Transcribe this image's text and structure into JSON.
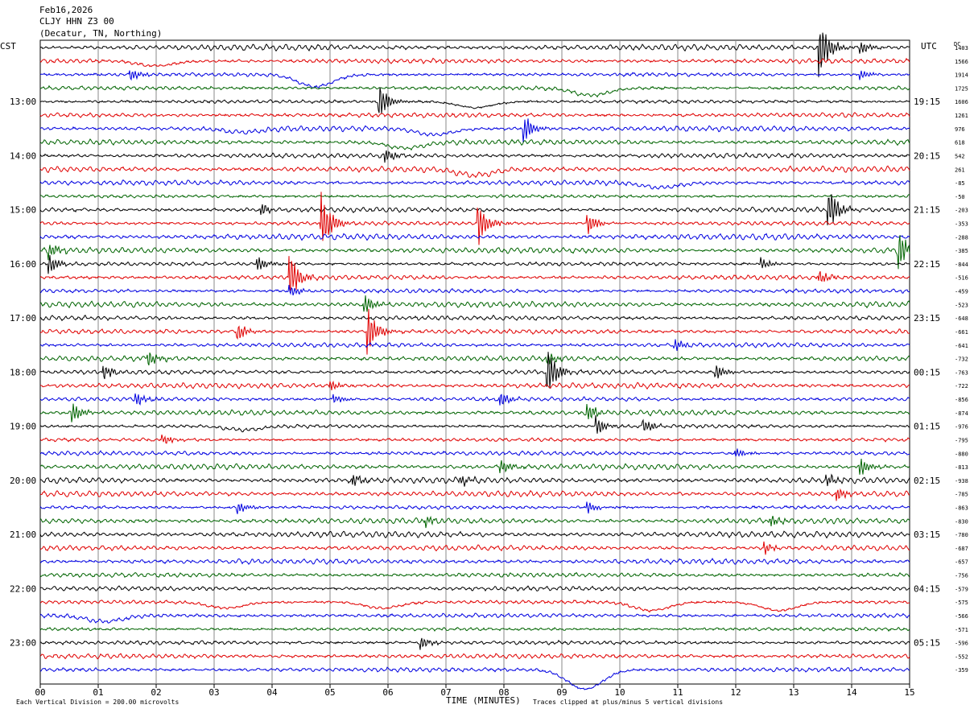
{
  "header": {
    "date": "Feb16,2026",
    "station": "CLJY HHN Z3 00",
    "location": "(Decatur, TN, Northing)"
  },
  "chart_data": {
    "type": "line",
    "title": "CLJY HHN Z3 00",
    "left_axis_label": "CST",
    "right_axis_label": "UTC",
    "dc_label": "DC",
    "xlabel": "TIME (MINUTES)",
    "xlim": [
      0,
      15
    ],
    "x_ticks": [
      "00",
      "01",
      "02",
      "03",
      "04",
      "05",
      "06",
      "07",
      "08",
      "09",
      "10",
      "11",
      "12",
      "13",
      "14",
      "15"
    ],
    "left_hour_labels": [
      {
        "trace": 4,
        "label": "13:00"
      },
      {
        "trace": 8,
        "label": "14:00"
      },
      {
        "trace": 12,
        "label": "15:00"
      },
      {
        "trace": 16,
        "label": "16:00"
      },
      {
        "trace": 20,
        "label": "17:00"
      },
      {
        "trace": 24,
        "label": "18:00"
      },
      {
        "trace": 28,
        "label": "19:00"
      },
      {
        "trace": 32,
        "label": "20:00"
      },
      {
        "trace": 36,
        "label": "21:00"
      },
      {
        "trace": 40,
        "label": "22:00"
      },
      {
        "trace": 44,
        "label": "23:00"
      }
    ],
    "right_hour_labels": [
      {
        "trace": 4,
        "label": "19:15"
      },
      {
        "trace": 8,
        "label": "20:15"
      },
      {
        "trace": 12,
        "label": "21:15"
      },
      {
        "trace": 16,
        "label": "22:15"
      },
      {
        "trace": 20,
        "label": "23:15"
      },
      {
        "trace": 24,
        "label": "00:15"
      },
      {
        "trace": 28,
        "label": "01:15"
      },
      {
        "trace": 32,
        "label": "02:15"
      },
      {
        "trace": 36,
        "label": "03:15"
      },
      {
        "trace": 40,
        "label": "04:15"
      },
      {
        "trace": 44,
        "label": "05:15"
      }
    ],
    "dc_offsets": [
      "1403",
      "1566",
      "1914",
      "1725",
      "1606",
      "1261",
      "976",
      "618",
      "542",
      "261",
      "-85",
      "-50",
      "-203",
      "-353",
      "-288",
      "-385",
      "-844",
      "-516",
      "-459",
      "-523",
      "-648",
      "-661",
      "-641",
      "-732",
      "-763",
      "-722",
      "-856",
      "-874",
      "-976",
      "-795",
      "-880",
      "-813",
      "-938",
      "-785",
      "-863",
      "-830",
      "-780",
      "-687",
      "-657",
      "-756",
      "-579",
      "-575",
      "-566",
      "-571",
      "-596",
      "-552",
      "-359"
    ],
    "trace_colors": [
      "#000000",
      "#e00000",
      "#0000e0",
      "#006400"
    ],
    "events": [
      {
        "trace": 0,
        "minute": 13.45,
        "amplitude": 2.6
      },
      {
        "trace": 0,
        "minute": 14.15,
        "amplitude": 0.6
      },
      {
        "trace": 2,
        "minute": 1.55,
        "amplitude": 0.6
      },
      {
        "trace": 2,
        "minute": 14.15,
        "amplitude": 0.5
      },
      {
        "trace": 4,
        "minute": 5.85,
        "amplitude": 1.6
      },
      {
        "trace": 6,
        "minute": 8.35,
        "amplitude": 1.2
      },
      {
        "trace": 8,
        "minute": 5.95,
        "amplitude": 0.6
      },
      {
        "trace": 12,
        "minute": 3.8,
        "amplitude": 0.6
      },
      {
        "trace": 12,
        "minute": 13.6,
        "amplitude": 2.0
      },
      {
        "trace": 13,
        "minute": 4.85,
        "amplitude": 2.8
      },
      {
        "trace": 13,
        "minute": 7.55,
        "amplitude": 2.2
      },
      {
        "trace": 13,
        "minute": 9.45,
        "amplitude": 0.9
      },
      {
        "trace": 15,
        "minute": 0.15,
        "amplitude": 0.7
      },
      {
        "trace": 15,
        "minute": 14.8,
        "amplitude": 1.8
      },
      {
        "trace": 16,
        "minute": 0.15,
        "amplitude": 0.9
      },
      {
        "trace": 16,
        "minute": 3.75,
        "amplitude": 0.7
      },
      {
        "trace": 16,
        "minute": 12.45,
        "amplitude": 0.6
      },
      {
        "trace": 17,
        "minute": 4.3,
        "amplitude": 2.2
      },
      {
        "trace": 17,
        "minute": 13.45,
        "amplitude": 0.6
      },
      {
        "trace": 18,
        "minute": 4.3,
        "amplitude": 0.6
      },
      {
        "trace": 19,
        "minute": 5.6,
        "amplitude": 0.8
      },
      {
        "trace": 21,
        "minute": 5.65,
        "amplitude": 2.0
      },
      {
        "trace": 21,
        "minute": 3.4,
        "amplitude": 0.8
      },
      {
        "trace": 22,
        "minute": 10.95,
        "amplitude": 0.5
      },
      {
        "trace": 23,
        "minute": 1.85,
        "amplitude": 0.8
      },
      {
        "trace": 23,
        "minute": 8.75,
        "amplitude": 0.6
      },
      {
        "trace": 24,
        "minute": 8.75,
        "amplitude": 2.0
      },
      {
        "trace": 24,
        "minute": 1.1,
        "amplitude": 0.6
      },
      {
        "trace": 24,
        "minute": 11.65,
        "amplitude": 0.7
      },
      {
        "trace": 25,
        "minute": 5.0,
        "amplitude": 0.5
      },
      {
        "trace": 26,
        "minute": 1.65,
        "amplitude": 0.6
      },
      {
        "trace": 26,
        "minute": 5.05,
        "amplitude": 0.5
      },
      {
        "trace": 26,
        "minute": 7.95,
        "amplitude": 0.6
      },
      {
        "trace": 27,
        "minute": 0.55,
        "amplitude": 1.0
      },
      {
        "trace": 27,
        "minute": 9.45,
        "amplitude": 0.7
      },
      {
        "trace": 28,
        "minute": 9.6,
        "amplitude": 0.8
      },
      {
        "trace": 28,
        "minute": 10.4,
        "amplitude": 0.8
      },
      {
        "trace": 29,
        "minute": 2.1,
        "amplitude": 0.5
      },
      {
        "trace": 30,
        "minute": 12.0,
        "amplitude": 0.5
      },
      {
        "trace": 31,
        "minute": 7.95,
        "amplitude": 0.7
      },
      {
        "trace": 31,
        "minute": 14.15,
        "amplitude": 0.8
      },
      {
        "trace": 32,
        "minute": 5.4,
        "amplitude": 0.5
      },
      {
        "trace": 32,
        "minute": 7.25,
        "amplitude": 0.5
      },
      {
        "trace": 32,
        "minute": 13.55,
        "amplitude": 0.6
      },
      {
        "trace": 33,
        "minute": 13.75,
        "amplitude": 0.6
      },
      {
        "trace": 34,
        "minute": 3.4,
        "amplitude": 0.6
      },
      {
        "trace": 34,
        "minute": 9.45,
        "amplitude": 0.5
      },
      {
        "trace": 35,
        "minute": 6.65,
        "amplitude": 0.5
      },
      {
        "trace": 35,
        "minute": 12.6,
        "amplitude": 0.6
      },
      {
        "trace": 37,
        "minute": 12.5,
        "amplitude": 0.5
      },
      {
        "trace": 44,
        "minute": 6.55,
        "amplitude": 0.7
      }
    ],
    "drifts": [
      {
        "trace": 1,
        "minute": 2.0,
        "depth": 0.8
      },
      {
        "trace": 2,
        "minute": 4.75,
        "depth": 2.0
      },
      {
        "trace": 3,
        "minute": 9.5,
        "depth": 1.2
      },
      {
        "trace": 4,
        "minute": 7.5,
        "depth": 1.0
      },
      {
        "trace": 6,
        "minute": 3.5,
        "depth": 0.6
      },
      {
        "trace": 6,
        "minute": 6.8,
        "depth": 1.0
      },
      {
        "trace": 7,
        "minute": 6.3,
        "depth": 1.0
      },
      {
        "trace": 9,
        "minute": 7.5,
        "depth": 1.0
      },
      {
        "trace": 10,
        "minute": 10.7,
        "depth": 0.8
      },
      {
        "trace": 28,
        "minute": 3.5,
        "depth": 0.6
      },
      {
        "trace": 41,
        "minute": 3.2,
        "depth": 1.0
      },
      {
        "trace": 41,
        "minute": 5.9,
        "depth": 1.0
      },
      {
        "trace": 41,
        "minute": 10.55,
        "depth": 1.4
      },
      {
        "trace": 41,
        "minute": 12.75,
        "depth": 1.4
      },
      {
        "trace": 42,
        "minute": 1.1,
        "depth": 1.0
      },
      {
        "trace": 46,
        "minute": 9.4,
        "depth": 3.2
      }
    ]
  },
  "footer": {
    "scale_note": "Each Vertical Division =  200.00 microvolts",
    "clip_note": "Traces clipped at plus/minus 5 vertical divisions"
  }
}
